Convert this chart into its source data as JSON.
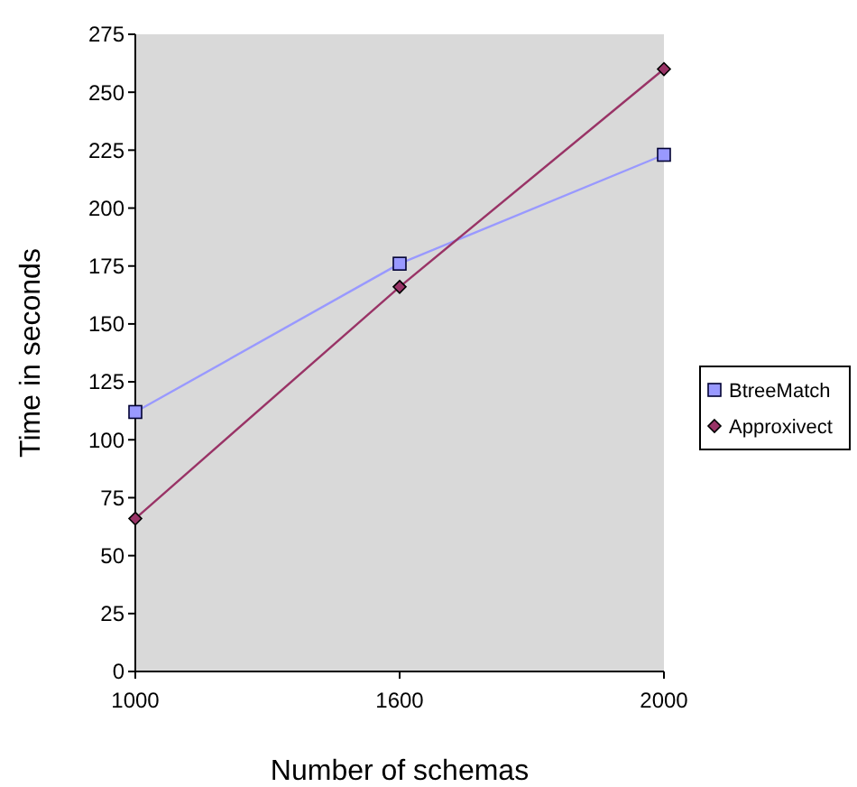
{
  "chart_data": {
    "type": "line",
    "xlabel": "Number of schemas",
    "ylabel": "Time in seconds",
    "categories": [
      "1000",
      "1600",
      "2000"
    ],
    "ylim": [
      0,
      275
    ],
    "yticks": [
      0,
      25,
      50,
      75,
      100,
      125,
      150,
      175,
      200,
      225,
      250,
      275
    ],
    "legend": "right",
    "grid": false,
    "series": [
      {
        "name": "BtreeMatch",
        "color": "#9999ff",
        "marker": "square",
        "values": [
          112,
          176,
          223
        ]
      },
      {
        "name": "Approxivect",
        "color": "#993366",
        "marker": "diamond",
        "values": [
          66,
          166,
          260
        ]
      }
    ]
  }
}
